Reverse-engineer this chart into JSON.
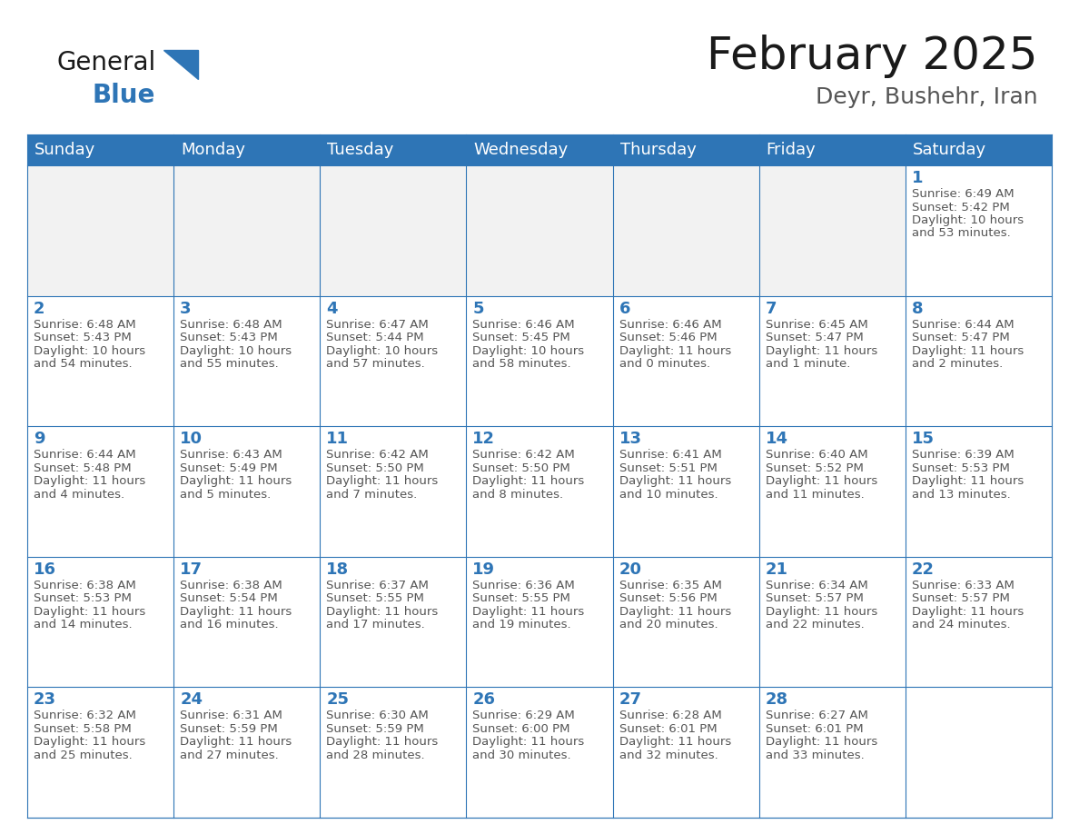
{
  "title": "February 2025",
  "subtitle": "Deyr, Bushehr, Iran",
  "header_bg": "#2E75B6",
  "header_text_color": "#FFFFFF",
  "cell_bg": "#FFFFFF",
  "cell_border_color": "#2E75B6",
  "day_num_color": "#2E75B6",
  "info_text_color": "#555555",
  "days_of_week": [
    "Sunday",
    "Monday",
    "Tuesday",
    "Wednesday",
    "Thursday",
    "Friday",
    "Saturday"
  ],
  "weeks": [
    [
      {
        "day": null,
        "sunrise": null,
        "sunset": null,
        "daylight": null
      },
      {
        "day": null,
        "sunrise": null,
        "sunset": null,
        "daylight": null
      },
      {
        "day": null,
        "sunrise": null,
        "sunset": null,
        "daylight": null
      },
      {
        "day": null,
        "sunrise": null,
        "sunset": null,
        "daylight": null
      },
      {
        "day": null,
        "sunrise": null,
        "sunset": null,
        "daylight": null
      },
      {
        "day": null,
        "sunrise": null,
        "sunset": null,
        "daylight": null
      },
      {
        "day": 1,
        "sunrise": "6:49 AM",
        "sunset": "5:42 PM",
        "daylight": "10 hours and 53 minutes."
      }
    ],
    [
      {
        "day": 2,
        "sunrise": "6:48 AM",
        "sunset": "5:43 PM",
        "daylight": "10 hours and 54 minutes."
      },
      {
        "day": 3,
        "sunrise": "6:48 AM",
        "sunset": "5:43 PM",
        "daylight": "10 hours and 55 minutes."
      },
      {
        "day": 4,
        "sunrise": "6:47 AM",
        "sunset": "5:44 PM",
        "daylight": "10 hours and 57 minutes."
      },
      {
        "day": 5,
        "sunrise": "6:46 AM",
        "sunset": "5:45 PM",
        "daylight": "10 hours and 58 minutes."
      },
      {
        "day": 6,
        "sunrise": "6:46 AM",
        "sunset": "5:46 PM",
        "daylight": "11 hours and 0 minutes."
      },
      {
        "day": 7,
        "sunrise": "6:45 AM",
        "sunset": "5:47 PM",
        "daylight": "11 hours and 1 minute."
      },
      {
        "day": 8,
        "sunrise": "6:44 AM",
        "sunset": "5:47 PM",
        "daylight": "11 hours and 2 minutes."
      }
    ],
    [
      {
        "day": 9,
        "sunrise": "6:44 AM",
        "sunset": "5:48 PM",
        "daylight": "11 hours and 4 minutes."
      },
      {
        "day": 10,
        "sunrise": "6:43 AM",
        "sunset": "5:49 PM",
        "daylight": "11 hours and 5 minutes."
      },
      {
        "day": 11,
        "sunrise": "6:42 AM",
        "sunset": "5:50 PM",
        "daylight": "11 hours and 7 minutes."
      },
      {
        "day": 12,
        "sunrise": "6:42 AM",
        "sunset": "5:50 PM",
        "daylight": "11 hours and 8 minutes."
      },
      {
        "day": 13,
        "sunrise": "6:41 AM",
        "sunset": "5:51 PM",
        "daylight": "11 hours and 10 minutes."
      },
      {
        "day": 14,
        "sunrise": "6:40 AM",
        "sunset": "5:52 PM",
        "daylight": "11 hours and 11 minutes."
      },
      {
        "day": 15,
        "sunrise": "6:39 AM",
        "sunset": "5:53 PM",
        "daylight": "11 hours and 13 minutes."
      }
    ],
    [
      {
        "day": 16,
        "sunrise": "6:38 AM",
        "sunset": "5:53 PM",
        "daylight": "11 hours and 14 minutes."
      },
      {
        "day": 17,
        "sunrise": "6:38 AM",
        "sunset": "5:54 PM",
        "daylight": "11 hours and 16 minutes."
      },
      {
        "day": 18,
        "sunrise": "6:37 AM",
        "sunset": "5:55 PM",
        "daylight": "11 hours and 17 minutes."
      },
      {
        "day": 19,
        "sunrise": "6:36 AM",
        "sunset": "5:55 PM",
        "daylight": "11 hours and 19 minutes."
      },
      {
        "day": 20,
        "sunrise": "6:35 AM",
        "sunset": "5:56 PM",
        "daylight": "11 hours and 20 minutes."
      },
      {
        "day": 21,
        "sunrise": "6:34 AM",
        "sunset": "5:57 PM",
        "daylight": "11 hours and 22 minutes."
      },
      {
        "day": 22,
        "sunrise": "6:33 AM",
        "sunset": "5:57 PM",
        "daylight": "11 hours and 24 minutes."
      }
    ],
    [
      {
        "day": 23,
        "sunrise": "6:32 AM",
        "sunset": "5:58 PM",
        "daylight": "11 hours and 25 minutes."
      },
      {
        "day": 24,
        "sunrise": "6:31 AM",
        "sunset": "5:59 PM",
        "daylight": "11 hours and 27 minutes."
      },
      {
        "day": 25,
        "sunrise": "6:30 AM",
        "sunset": "5:59 PM",
        "daylight": "11 hours and 28 minutes."
      },
      {
        "day": 26,
        "sunrise": "6:29 AM",
        "sunset": "6:00 PM",
        "daylight": "11 hours and 30 minutes."
      },
      {
        "day": 27,
        "sunrise": "6:28 AM",
        "sunset": "6:01 PM",
        "daylight": "11 hours and 32 minutes."
      },
      {
        "day": 28,
        "sunrise": "6:27 AM",
        "sunset": "6:01 PM",
        "daylight": "11 hours and 33 minutes."
      },
      {
        "day": null,
        "sunrise": null,
        "sunset": null,
        "daylight": null
      }
    ]
  ],
  "logo_general_color": "#1a1a1a",
  "logo_blue_color": "#2E75B6",
  "logo_triangle_color": "#2E75B6",
  "fig_bg": "#FFFFFF",
  "title_fontsize": 36,
  "subtitle_fontsize": 18,
  "header_fontsize": 13,
  "day_num_fontsize": 13,
  "info_fontsize": 9.5
}
